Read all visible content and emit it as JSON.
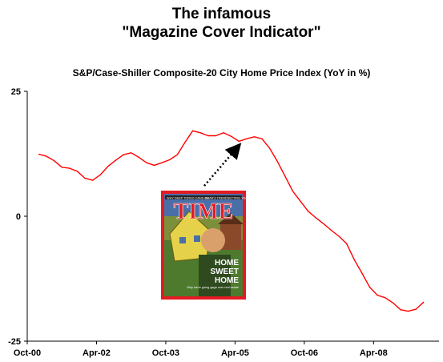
{
  "header": {
    "title_line1": "The infamous",
    "title_line2": "\"Magazine Cover Indicator\""
  },
  "cover": {
    "masthead": "TIME",
    "topline_left": "WHY DEEP TORSO CANS GO",
    "topline_right": "BEAR'S TRENDSETTING YEAR",
    "headline_1": "HOME",
    "headline_2": "SWEET",
    "headline_3": "HOME",
    "caption": "Why we're going gaga over real estate",
    "border_color": "#e31b23"
  },
  "chart_data": {
    "type": "line",
    "title": "S&P/Case-Shiller Composite-20 City Home Price Index (YoY in %)",
    "xlabel": "",
    "ylabel": "",
    "ylim": [
      -25,
      25
    ],
    "yticks": [
      25,
      0,
      -25
    ],
    "xlim": [
      "2000-10",
      "2009-09"
    ],
    "xticks": [
      "Oct-00",
      "Apr-02",
      "Oct-03",
      "Apr-05",
      "Oct-06",
      "Apr-08"
    ],
    "xtick_dates": [
      "2000-10",
      "2002-04",
      "2003-10",
      "2005-04",
      "2006-10",
      "2008-04"
    ],
    "grid": false,
    "line_color": "#ff0000",
    "series": [
      {
        "name": "",
        "points": [
          [
            "2001-01",
            12.4
          ],
          [
            "2001-03",
            12.0
          ],
          [
            "2001-05",
            11.1
          ],
          [
            "2001-07",
            9.8
          ],
          [
            "2001-09",
            9.6
          ],
          [
            "2001-11",
            9.0
          ],
          [
            "2002-01",
            7.6
          ],
          [
            "2002-03",
            7.2
          ],
          [
            "2002-05",
            8.3
          ],
          [
            "2002-07",
            10.0
          ],
          [
            "2002-09",
            11.2
          ],
          [
            "2002-11",
            12.3
          ],
          [
            "2003-01",
            12.7
          ],
          [
            "2003-03",
            11.8
          ],
          [
            "2003-05",
            10.7
          ],
          [
            "2003-07",
            10.2
          ],
          [
            "2003-09",
            10.7
          ],
          [
            "2003-11",
            11.3
          ],
          [
            "2004-01",
            12.3
          ],
          [
            "2004-03",
            14.8
          ],
          [
            "2004-05",
            17.1
          ],
          [
            "2004-07",
            16.7
          ],
          [
            "2004-09",
            16.1
          ],
          [
            "2004-11",
            16.1
          ],
          [
            "2005-01",
            16.7
          ],
          [
            "2005-03",
            16.0
          ],
          [
            "2005-05",
            15.0
          ],
          [
            "2005-07",
            15.5
          ],
          [
            "2005-09",
            15.9
          ],
          [
            "2005-11",
            15.5
          ],
          [
            "2006-01",
            13.6
          ],
          [
            "2006-03",
            11.0
          ],
          [
            "2006-05",
            8.0
          ],
          [
            "2006-07",
            5.0
          ],
          [
            "2006-09",
            3.0
          ],
          [
            "2006-11",
            1.0
          ],
          [
            "2007-01",
            -0.3
          ],
          [
            "2007-03",
            -1.5
          ],
          [
            "2007-05",
            -2.8
          ],
          [
            "2007-07",
            -4.0
          ],
          [
            "2007-09",
            -5.5
          ],
          [
            "2007-11",
            -8.7
          ],
          [
            "2008-01",
            -11.4
          ],
          [
            "2008-03",
            -14.2
          ],
          [
            "2008-05",
            -15.8
          ],
          [
            "2008-07",
            -16.3
          ],
          [
            "2008-09",
            -17.3
          ],
          [
            "2008-11",
            -18.7
          ],
          [
            "2009-01",
            -19.0
          ],
          [
            "2009-03",
            -18.6
          ],
          [
            "2009-05",
            -17.2
          ]
        ]
      }
    ]
  }
}
